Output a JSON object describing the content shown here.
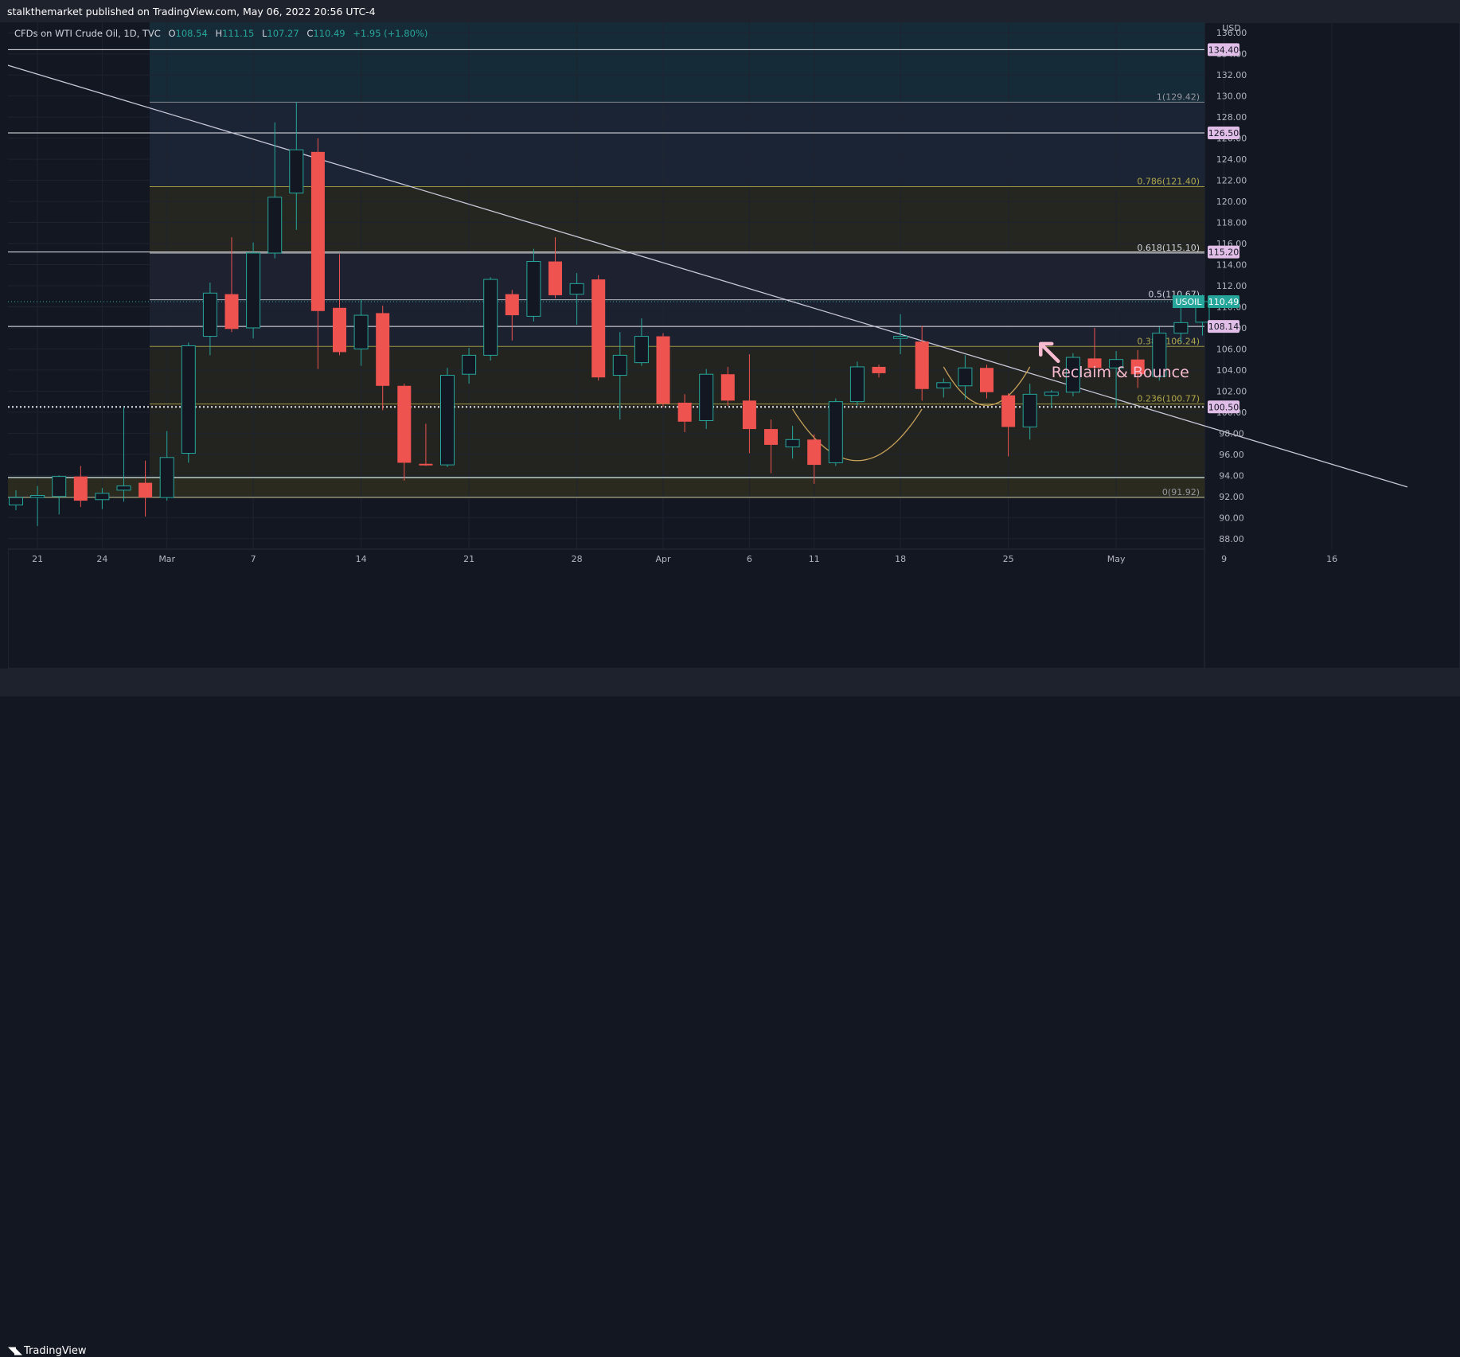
{
  "header": {
    "published": "stalkthemarket published on TradingView.com, May 06, 2022 20:56 UTC-4"
  },
  "legend": {
    "symbol": "CFDs on WTI Crude Oil, 1D, TVC",
    "o_label": "O",
    "o": "108.54",
    "h_label": "H",
    "h": "111.15",
    "l_label": "L",
    "l": "107.27",
    "c_label": "C",
    "c": "110.49",
    "change": "+1.95 (+1.80%)"
  },
  "footer": {
    "brand": "TradingView"
  },
  "colors": {
    "up": "#26a69a",
    "down": "#ef5350",
    "background": "#131722",
    "tag": "#e1bee7"
  },
  "chart_data": {
    "type": "candlestick",
    "currency": "USD",
    "ylim": [
      87,
      137
    ],
    "y_ticks": [
      88,
      90,
      92,
      94,
      96,
      98,
      100,
      102,
      104,
      106,
      108,
      110,
      112,
      114,
      116,
      118,
      120,
      122,
      124,
      126,
      128,
      130,
      132,
      134,
      136
    ],
    "x_ticks": [
      {
        "label": "21",
        "idx": 1
      },
      {
        "label": "24",
        "idx": 4
      },
      {
        "label": "Mar",
        "idx": 7
      },
      {
        "label": "7",
        "idx": 11
      },
      {
        "label": "14",
        "idx": 16
      },
      {
        "label": "21",
        "idx": 21
      },
      {
        "label": "28",
        "idx": 26
      },
      {
        "label": "Apr",
        "idx": 30
      },
      {
        "label": "6",
        "idx": 34
      },
      {
        "label": "11",
        "idx": 37
      },
      {
        "label": "18",
        "idx": 41
      },
      {
        "label": "25",
        "idx": 46
      },
      {
        "label": "May",
        "idx": 51
      },
      {
        "label": "9",
        "idx": 56
      },
      {
        "label": "16",
        "idx": 61
      }
    ],
    "candles": [
      {
        "o": 91.2,
        "h": 92.6,
        "l": 90.7,
        "c": 91.9
      },
      {
        "o": 91.9,
        "h": 93.0,
        "l": 89.2,
        "c": 92.1
      },
      {
        "o": 92.0,
        "h": 94.0,
        "l": 90.3,
        "c": 93.9
      },
      {
        "o": 93.9,
        "h": 94.9,
        "l": 91.0,
        "c": 91.6
      },
      {
        "o": 91.7,
        "h": 92.8,
        "l": 90.8,
        "c": 92.3
      },
      {
        "o": 92.6,
        "h": 100.5,
        "l": 91.5,
        "c": 93.0
      },
      {
        "o": 93.3,
        "h": 95.4,
        "l": 90.1,
        "c": 91.9
      },
      {
        "o": 91.9,
        "h": 98.2,
        "l": 91.6,
        "c": 95.7
      },
      {
        "o": 96.1,
        "h": 106.6,
        "l": 95.2,
        "c": 106.3
      },
      {
        "o": 107.2,
        "h": 112.3,
        "l": 105.4,
        "c": 111.3
      },
      {
        "o": 111.2,
        "h": 116.6,
        "l": 107.6,
        "c": 107.9
      },
      {
        "o": 108.0,
        "h": 116.1,
        "l": 107.0,
        "c": 115.1
      },
      {
        "o": 115.1,
        "h": 127.5,
        "l": 114.6,
        "c": 120.4
      },
      {
        "o": 120.8,
        "h": 129.42,
        "l": 117.3,
        "c": 124.9
      },
      {
        "o": 124.7,
        "h": 126.0,
        "l": 104.1,
        "c": 109.6
      },
      {
        "o": 109.9,
        "h": 115.0,
        "l": 105.4,
        "c": 105.7
      },
      {
        "o": 106.0,
        "h": 110.7,
        "l": 104.4,
        "c": 109.2
      },
      {
        "o": 109.4,
        "h": 110.1,
        "l": 100.2,
        "c": 102.5
      },
      {
        "o": 102.5,
        "h": 102.7,
        "l": 93.5,
        "c": 95.2
      },
      {
        "o": 95.1,
        "h": 98.9,
        "l": 94.9,
        "c": 95.0
      },
      {
        "o": 95.0,
        "h": 104.2,
        "l": 94.8,
        "c": 103.5
      },
      {
        "o": 103.6,
        "h": 106.1,
        "l": 102.7,
        "c": 105.4
      },
      {
        "o": 105.4,
        "h": 112.8,
        "l": 104.9,
        "c": 112.6
      },
      {
        "o": 111.2,
        "h": 111.6,
        "l": 106.8,
        "c": 109.2
      },
      {
        "o": 109.1,
        "h": 115.5,
        "l": 108.6,
        "c": 114.3
      },
      {
        "o": 114.3,
        "h": 116.6,
        "l": 110.8,
        "c": 111.1
      },
      {
        "o": 111.2,
        "h": 113.2,
        "l": 108.3,
        "c": 112.2
      },
      {
        "o": 112.6,
        "h": 113.0,
        "l": 103.0,
        "c": 103.3
      },
      {
        "o": 103.5,
        "h": 107.6,
        "l": 99.3,
        "c": 105.4
      },
      {
        "o": 104.7,
        "h": 108.9,
        "l": 104.4,
        "c": 107.2
      },
      {
        "o": 107.2,
        "h": 107.5,
        "l": 100.5,
        "c": 100.8
      },
      {
        "o": 100.9,
        "h": 101.7,
        "l": 98.1,
        "c": 99.1
      },
      {
        "o": 99.2,
        "h": 104.1,
        "l": 98.4,
        "c": 103.6
      },
      {
        "o": 103.6,
        "h": 104.3,
        "l": 100.6,
        "c": 101.1
      },
      {
        "o": 101.1,
        "h": 105.5,
        "l": 96.1,
        "c": 98.4
      },
      {
        "o": 98.4,
        "h": 99.3,
        "l": 94.2,
        "c": 96.9
      },
      {
        "o": 96.7,
        "h": 98.7,
        "l": 95.6,
        "c": 97.4
      },
      {
        "o": 97.4,
        "h": 97.9,
        "l": 93.2,
        "c": 95.0
      },
      {
        "o": 95.2,
        "h": 101.3,
        "l": 94.9,
        "c": 101.0
      },
      {
        "o": 101.0,
        "h": 104.8,
        "l": 100.6,
        "c": 104.3
      },
      {
        "o": 104.3,
        "h": 104.5,
        "l": 103.3,
        "c": 103.7
      },
      {
        "o": 107.0,
        "h": 109.3,
        "l": 105.5,
        "c": 107.2
      },
      {
        "o": 106.7,
        "h": 108.2,
        "l": 101.1,
        "c": 102.2
      },
      {
        "o": 102.3,
        "h": 103.2,
        "l": 101.4,
        "c": 102.8
      },
      {
        "o": 102.5,
        "h": 105.4,
        "l": 101.2,
        "c": 104.2
      },
      {
        "o": 104.2,
        "h": 104.5,
        "l": 101.3,
        "c": 101.9
      },
      {
        "o": 101.6,
        "h": 101.8,
        "l": 95.8,
        "c": 98.6
      },
      {
        "o": 98.6,
        "h": 102.7,
        "l": 97.4,
        "c": 101.7
      },
      {
        "o": 101.6,
        "h": 102.1,
        "l": 100.4,
        "c": 101.9
      },
      {
        "o": 101.9,
        "h": 105.6,
        "l": 101.5,
        "c": 105.2
      },
      {
        "o": 105.1,
        "h": 108.0,
        "l": 103.8,
        "c": 104.2
      },
      {
        "o": 104.2,
        "h": 105.8,
        "l": 100.4,
        "c": 105.0
      },
      {
        "o": 105.0,
        "h": 105.9,
        "l": 102.3,
        "c": 103.6
      },
      {
        "o": 103.4,
        "h": 108.1,
        "l": 103.0,
        "c": 107.5
      },
      {
        "o": 107.5,
        "h": 111.3,
        "l": 106.6,
        "c": 108.5
      },
      {
        "o": 108.54,
        "h": 111.15,
        "l": 107.27,
        "c": 110.49
      }
    ],
    "price_lines": [
      {
        "price": 134.4,
        "label": "134.40"
      },
      {
        "price": 126.5,
        "label": "126.50"
      },
      {
        "price": 115.2,
        "label": "115.20"
      },
      {
        "price": 108.14,
        "label": "108.14"
      },
      {
        "price": 100.5,
        "label": "100.50"
      }
    ],
    "fib_levels": [
      {
        "price": 129.42,
        "label": "1(129.42)",
        "color": "#9598a1"
      },
      {
        "price": 121.4,
        "label": "0.786(121.40)",
        "color": "#b0a84a"
      },
      {
        "price": 115.1,
        "label": "0.618(115.10)",
        "color": "#d1d4dc"
      },
      {
        "price": 110.67,
        "label": "0.5(110.67)",
        "color": "#d1d4dc"
      },
      {
        "price": 106.24,
        "label": "0.382(106.24)",
        "color": "#b0a84a"
      },
      {
        "price": 100.77,
        "label": "0.236(100.77)",
        "color": "#b0a84a"
      },
      {
        "price": 91.92,
        "label": "0(91.92)",
        "color": "#9598a1"
      }
    ],
    "support_line": {
      "price": 93.8
    },
    "trendline": {
      "from": {
        "idx": -0.5,
        "price": 133.0
      },
      "to": {
        "idx": 64.5,
        "price": 92.9
      }
    },
    "current_price": {
      "label": "USOIL",
      "value": "110.49"
    },
    "annotation": "Reclaim & Bounce"
  }
}
